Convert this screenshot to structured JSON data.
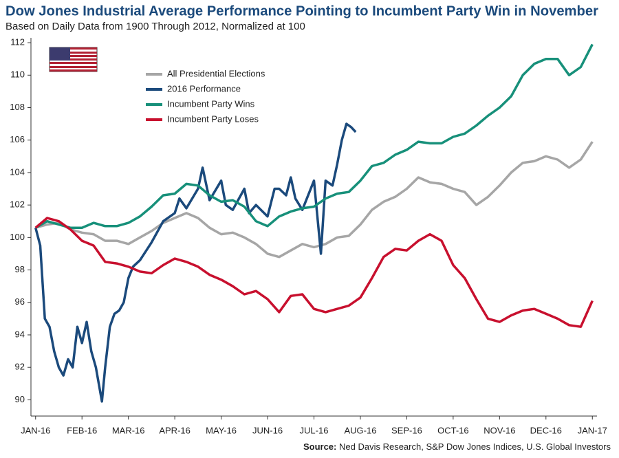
{
  "chart_data": {
    "type": "line",
    "title": "Dow Jones Industrial Average Performance Pointing to Incumbent Party Win in November",
    "subtitle": "Based on Daily Data from 1900 Through 2012, Normalized at 100",
    "source_label": "Source:",
    "source": "Ned Davis Research, S&P Dow Jones Indices, U.S. Global Investors",
    "x": [
      0,
      0.25,
      0.5,
      0.75,
      1,
      1.25,
      1.5,
      1.75,
      2,
      2.25,
      2.5,
      2.75,
      3,
      3.25,
      3.5,
      3.75,
      4,
      4.25,
      4.5,
      4.75,
      5,
      5.25,
      5.5,
      5.75,
      6,
      6.25,
      6.5,
      6.75,
      7,
      7.25,
      7.5,
      7.75,
      8,
      8.25,
      8.5,
      8.75,
      9,
      9.25,
      9.5,
      9.75,
      10,
      10.25,
      10.5,
      10.75,
      11,
      11.25,
      11.5,
      11.75,
      12
    ],
    "xlim": [
      -0.1,
      12.1
    ],
    "xticks": [
      {
        "value": 0,
        "label": "JAN-16"
      },
      {
        "value": 1,
        "label": "FEB-16"
      },
      {
        "value": 2,
        "label": "MAR-16"
      },
      {
        "value": 3,
        "label": "APR-16"
      },
      {
        "value": 4,
        "label": "MAY-16"
      },
      {
        "value": 5,
        "label": "JUN-16"
      },
      {
        "value": 6,
        "label": "JUL-16"
      },
      {
        "value": 7,
        "label": "AUG-16"
      },
      {
        "value": 8,
        "label": "SEP-16"
      },
      {
        "value": 9,
        "label": "OCT-16"
      },
      {
        "value": 10,
        "label": "NOV-16"
      },
      {
        "value": 11,
        "label": "DEC-16"
      },
      {
        "value": 12,
        "label": "JAN-17"
      }
    ],
    "ylim": [
      89,
      112.3
    ],
    "yticks": [
      90,
      92,
      94,
      96,
      98,
      100,
      102,
      104,
      106,
      108,
      110,
      112
    ],
    "series": [
      {
        "name": "All Presidential Elections",
        "color": "#a6a6a6",
        "values": [
          100.6,
          100.8,
          100.9,
          100.5,
          100.3,
          100.2,
          99.8,
          99.8,
          99.6,
          100.0,
          100.4,
          100.9,
          101.2,
          101.5,
          101.2,
          100.6,
          100.2,
          100.3,
          100.0,
          99.6,
          99.0,
          98.8,
          99.2,
          99.6,
          99.4,
          99.6,
          100.0,
          100.1,
          100.8,
          101.7,
          102.2,
          102.5,
          103.0,
          103.7,
          103.4,
          103.3,
          103.0,
          102.8,
          102.0,
          102.5,
          103.2,
          104.0,
          104.6,
          104.7,
          105.0,
          104.8,
          104.3,
          104.8,
          105.9
        ]
      },
      {
        "name": "2016 Performance",
        "color": "#1b4a7c",
        "x": [
          0,
          0.1,
          0.2,
          0.3,
          0.4,
          0.5,
          0.6,
          0.7,
          0.8,
          0.9,
          1,
          1.1,
          1.2,
          1.3,
          1.43,
          1.5,
          1.6,
          1.7,
          1.8,
          1.9,
          2,
          2.1,
          2.25,
          2.5,
          2.75,
          3,
          3.1,
          3.25,
          3.5,
          3.6,
          3.75,
          4,
          4.1,
          4.25,
          4.5,
          4.6,
          4.75,
          5,
          5.15,
          5.25,
          5.4,
          5.5,
          5.6,
          5.75,
          6,
          6.15,
          6.25,
          6.4,
          6.5,
          6.6,
          6.7,
          6.8,
          6.9
        ],
        "values": [
          100.6,
          99.5,
          95.0,
          94.5,
          93.0,
          92.0,
          91.5,
          92.5,
          92.0,
          94.5,
          93.5,
          94.8,
          93.0,
          92.0,
          89.9,
          92.0,
          94.5,
          95.3,
          95.5,
          96.0,
          97.5,
          98.2,
          98.6,
          99.7,
          101.0,
          101.5,
          102.4,
          101.8,
          103.0,
          104.3,
          102.3,
          103.5,
          102.0,
          101.7,
          103.0,
          101.5,
          102.0,
          101.3,
          103.0,
          103.0,
          102.6,
          103.7,
          102.4,
          101.7,
          103.5,
          99.0,
          103.5,
          103.2,
          104.5,
          106.0,
          107.0,
          106.8,
          106.5
        ]
      },
      {
        "name": "Incumbent Party Wins",
        "color": "#17907a",
        "values": [
          100.6,
          101.0,
          100.8,
          100.6,
          100.6,
          100.9,
          100.7,
          100.7,
          100.9,
          101.3,
          101.9,
          102.6,
          102.7,
          103.3,
          103.2,
          102.6,
          102.2,
          102.3,
          101.9,
          101.0,
          100.7,
          101.3,
          101.6,
          101.8,
          101.9,
          102.4,
          102.7,
          102.8,
          103.5,
          104.4,
          104.6,
          105.1,
          105.4,
          105.9,
          105.8,
          105.8,
          106.2,
          106.4,
          106.9,
          107.5,
          108.0,
          108.7,
          110.0,
          110.7,
          111.0,
          111.0,
          110.0,
          110.5,
          111.9
        ]
      },
      {
        "name": "Incumbent Party Loses",
        "color": "#c8102e",
        "values": [
          100.6,
          101.2,
          101.0,
          100.5,
          99.8,
          99.5,
          98.5,
          98.4,
          98.2,
          97.9,
          97.8,
          98.3,
          98.7,
          98.5,
          98.2,
          97.7,
          97.4,
          97.0,
          96.5,
          96.7,
          96.2,
          95.4,
          96.4,
          96.5,
          95.6,
          95.4,
          95.6,
          95.8,
          96.3,
          97.5,
          98.8,
          99.3,
          99.2,
          99.8,
          100.2,
          99.8,
          98.3,
          97.5,
          96.2,
          95.0,
          94.8,
          95.2,
          95.5,
          95.6,
          95.3,
          95.0,
          94.6,
          94.5,
          96.1
        ]
      }
    ]
  }
}
